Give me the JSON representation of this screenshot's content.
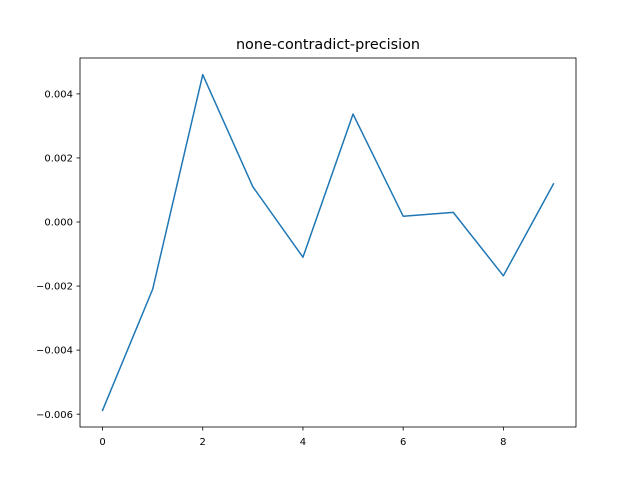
{
  "chart_data": {
    "type": "line",
    "title": "none-contradict-precision",
    "xlabel": "",
    "ylabel": "",
    "x": [
      0,
      1,
      2,
      3,
      4,
      5,
      6,
      7,
      8,
      9
    ],
    "series": [
      {
        "values": [
          -0.00588,
          -0.0021,
          0.0046,
          0.0011,
          -0.0011,
          0.00337,
          0.00018,
          0.0003,
          -0.00168,
          0.00119
        ],
        "color": "#1f77b4"
      }
    ],
    "xlim": [
      -0.45,
      9.45
    ],
    "ylim": [
      -0.0064,
      0.00512
    ],
    "xticks": [
      0,
      2,
      4,
      6,
      8
    ],
    "xtick_labels": [
      "0",
      "2",
      "4",
      "6",
      "8"
    ],
    "yticks": [
      -0.006,
      -0.004,
      -0.002,
      0.0,
      0.002,
      0.004
    ],
    "ytick_labels": [
      "−0.006",
      "−0.004",
      "−0.002",
      "0.000",
      "0.002",
      "0.004"
    ],
    "grid": false,
    "legend": "none"
  }
}
